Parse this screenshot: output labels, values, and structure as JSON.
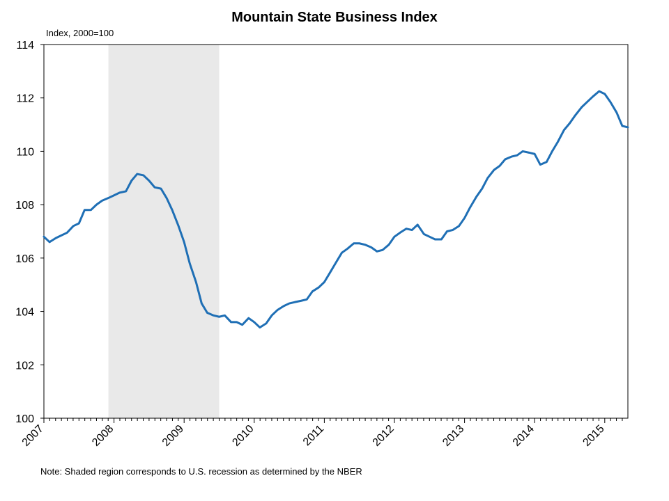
{
  "chart_data": {
    "type": "line",
    "title": "Mountain State Business Index",
    "unit_label": "Index, 2000=100",
    "ylim": [
      100,
      114
    ],
    "y_ticks": [
      100,
      102,
      104,
      106,
      108,
      110,
      112,
      114
    ],
    "x_ticks": [
      "2007",
      "2008",
      "2009",
      "2010",
      "2011",
      "2012",
      "2013",
      "2014",
      "2015"
    ],
    "x_tick_values": [
      2007,
      2008,
      2009,
      2010,
      2011,
      2012,
      2013,
      2014,
      2015
    ],
    "xlim": [
      2007.0,
      2015.33
    ],
    "grid": false,
    "line_color": "#1f6fb5",
    "recession_color": "#e9e9e9",
    "recession_band": {
      "start": 2007.92,
      "end": 2009.5
    },
    "series": [
      {
        "x": [
          2007.0,
          2007.08,
          2007.17,
          2007.25,
          2007.33,
          2007.42,
          2007.5,
          2007.58,
          2007.67,
          2007.75,
          2007.83,
          2007.92,
          2008.0,
          2008.08,
          2008.17,
          2008.25,
          2008.33,
          2008.42,
          2008.5,
          2008.58,
          2008.67,
          2008.75,
          2008.83,
          2008.92,
          2009.0,
          2009.08,
          2009.17,
          2009.25,
          2009.33,
          2009.42,
          2009.5,
          2009.58,
          2009.67,
          2009.75,
          2009.83,
          2009.92,
          2010.0,
          2010.08,
          2010.17,
          2010.25,
          2010.33,
          2010.42,
          2010.5,
          2010.58,
          2010.67,
          2010.75,
          2010.83,
          2010.92,
          2011.0,
          2011.08,
          2011.17,
          2011.25,
          2011.33,
          2011.42,
          2011.5,
          2011.58,
          2011.67,
          2011.75,
          2011.83,
          2011.92,
          2012.0,
          2012.08,
          2012.17,
          2012.25,
          2012.33,
          2012.42,
          2012.5,
          2012.58,
          2012.67,
          2012.75,
          2012.83,
          2012.92,
          2013.0,
          2013.08,
          2013.17,
          2013.25,
          2013.33,
          2013.42,
          2013.5,
          2013.58,
          2013.67,
          2013.75,
          2013.83,
          2013.92,
          2014.0,
          2014.08,
          2014.17,
          2014.25,
          2014.33,
          2014.42,
          2014.5,
          2014.58,
          2014.67,
          2014.75,
          2014.83,
          2014.92,
          2015.0,
          2015.08,
          2015.17,
          2015.25,
          2015.33
        ],
        "values": [
          106.8,
          106.6,
          106.75,
          106.85,
          106.95,
          107.2,
          107.3,
          107.8,
          107.8,
          108.0,
          108.15,
          108.25,
          108.35,
          108.45,
          108.5,
          108.9,
          109.15,
          109.1,
          108.9,
          108.65,
          108.6,
          108.25,
          107.8,
          107.2,
          106.6,
          105.8,
          105.1,
          104.3,
          103.95,
          103.85,
          103.8,
          103.85,
          103.6,
          103.6,
          103.5,
          103.75,
          103.6,
          103.4,
          103.55,
          103.85,
          104.05,
          104.2,
          104.3,
          104.35,
          104.4,
          104.45,
          104.75,
          104.9,
          105.1,
          105.45,
          105.85,
          106.2,
          106.35,
          106.55,
          106.55,
          106.5,
          106.4,
          106.25,
          106.3,
          106.5,
          106.8,
          106.95,
          107.1,
          107.05,
          107.25,
          106.9,
          106.8,
          106.7,
          106.7,
          107.0,
          107.05,
          107.2,
          107.5,
          107.9,
          108.3,
          108.6,
          109.0,
          109.3,
          109.45,
          109.7,
          109.8,
          109.85,
          110.0,
          109.95,
          109.9,
          109.5,
          109.6,
          110.0,
          110.35,
          110.8,
          111.05,
          111.35,
          111.65,
          111.85,
          112.05,
          112.25,
          112.15,
          111.85,
          111.45,
          110.95,
          110.9
        ]
      }
    ]
  },
  "footnote": "Note: Shaded region corresponds to U.S. recession as determined by the NBER"
}
